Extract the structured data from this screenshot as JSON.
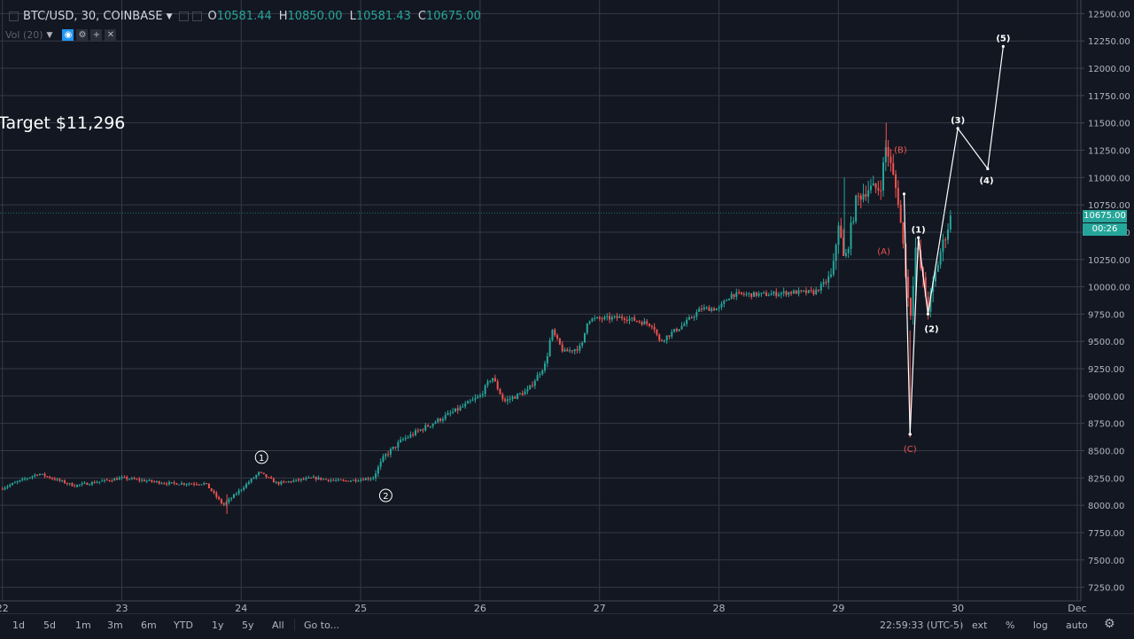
{
  "legend": {
    "symbol": "BTC/USD, 30, COINBASE",
    "open_label": "O",
    "open": "10581.44",
    "high_label": "H",
    "high": "10850.00",
    "low_label": "L",
    "low": "10581.43",
    "close_label": "C",
    "close": "10675.00",
    "dropdown_icon": "caret-down-icon"
  },
  "volume": {
    "label": "Vol (20)",
    "icons": [
      "eye-icon",
      "gear-icon",
      "plus-icon",
      "close-icon"
    ]
  },
  "annotation": {
    "target": "Target $11,296"
  },
  "price_badge": {
    "value": "10675.00",
    "countdown": "00:26",
    "color": "#26a69a"
  },
  "bottom_bar": {
    "timeframes": [
      "1d",
      "5d",
      "1m",
      "3m",
      "6m",
      "YTD",
      "1y",
      "5y",
      "All"
    ],
    "goto": "Go to...",
    "time": "22:59:33 (UTC-5)",
    "ext": "ext",
    "percent": "%",
    "log": "log",
    "auto": "auto",
    "settings_icon": "gear-icon"
  },
  "chart_data": {
    "type": "candlestick",
    "title": "BTC/USD, 30, COINBASE",
    "ylim": [
      7125,
      12625
    ],
    "y_ticks": [
      7250,
      7500,
      7750,
      8000,
      8250,
      8500,
      8750,
      9000,
      9250,
      9500,
      9750,
      10000,
      10250,
      10500,
      10750,
      11000,
      11250,
      11500,
      11750,
      12000,
      12250,
      12500
    ],
    "y_tick_labels": [
      "7250.00",
      "7500.00",
      "7750.00",
      "8000.00",
      "8250.00",
      "8500.00",
      "8750.00",
      "9000.00",
      "9250.00",
      "9500.00",
      "9750.00",
      "10000.00",
      "10250.00",
      "10500.00",
      "10750.00",
      "11000.00",
      "11250.00",
      "11500.00",
      "11750.00",
      "12000.00",
      "12250.00",
      "12500.00"
    ],
    "x_tick_labels": [
      "22",
      "23",
      "24",
      "25",
      "26",
      "27",
      "28",
      "29",
      "30",
      "Dec"
    ],
    "x_range_days": [
      21.98,
      31.03
    ],
    "x_tick_positions_days": [
      22,
      23,
      24,
      25,
      26,
      27,
      28,
      29,
      30,
      31
    ],
    "grid": true,
    "colors": {
      "up": "#26a69a",
      "down": "#ef5350",
      "background": "#131722",
      "grid": "#363a45",
      "wave": "#ffffff",
      "correction": "#ef5350"
    },
    "price_path": [
      [
        21.98,
        8150
      ],
      [
        22.3,
        8290
      ],
      [
        22.6,
        8180
      ],
      [
        23.0,
        8250
      ],
      [
        23.4,
        8200
      ],
      [
        23.7,
        8200
      ],
      [
        23.85,
        8000
      ],
      [
        24.0,
        8150
      ],
      [
        24.15,
        8300
      ],
      [
        24.3,
        8200
      ],
      [
        24.6,
        8250
      ],
      [
        24.85,
        8220
      ],
      [
        25.1,
        8250
      ],
      [
        25.2,
        8450
      ],
      [
        25.35,
        8600
      ],
      [
        25.6,
        8750
      ],
      [
        25.85,
        8900
      ],
      [
        26.0,
        9000
      ],
      [
        26.1,
        9180
      ],
      [
        26.2,
        8950
      ],
      [
        26.4,
        9050
      ],
      [
        26.55,
        9300
      ],
      [
        26.6,
        9600
      ],
      [
        26.7,
        9400
      ],
      [
        26.85,
        9450
      ],
      [
        26.9,
        9700
      ],
      [
        27.2,
        9720
      ],
      [
        27.45,
        9650
      ],
      [
        27.5,
        9500
      ],
      [
        27.7,
        9650
      ],
      [
        27.85,
        9800
      ],
      [
        28.0,
        9800
      ],
      [
        28.1,
        9930
      ],
      [
        28.4,
        9930
      ],
      [
        28.6,
        9950
      ],
      [
        28.8,
        9950
      ],
      [
        28.95,
        10100
      ],
      [
        29.0,
        10600
      ],
      [
        29.05,
        10200
      ],
      [
        29.15,
        10800
      ],
      [
        29.25,
        10900
      ],
      [
        29.35,
        10900
      ],
      [
        29.4,
        11300
      ],
      [
        29.45,
        11050
      ],
      [
        29.5,
        10800
      ],
      [
        29.55,
        10300
      ],
      [
        29.6,
        9700
      ],
      [
        29.65,
        10400
      ],
      [
        29.7,
        10100
      ],
      [
        29.75,
        9800
      ],
      [
        29.85,
        10300
      ],
      [
        29.95,
        10675
      ]
    ],
    "wave_lines": [
      {
        "name": "elliott-impulse",
        "points": [
          [
            29.6,
            8650
          ],
          [
            29.67,
            10450
          ],
          [
            29.75,
            9750
          ],
          [
            30.0,
            11450
          ],
          [
            30.25,
            11080
          ],
          [
            30.38,
            12200
          ]
        ]
      },
      {
        "name": "abc-correction",
        "points": [
          [
            29.55,
            10850
          ],
          [
            29.6,
            8650
          ]
        ]
      }
    ],
    "annotations": [
      {
        "text": "(5)",
        "x": 30.38,
        "y": 12280,
        "color": "#ffffff"
      },
      {
        "text": "(3)",
        "x": 30.0,
        "y": 11530,
        "color": "#ffffff"
      },
      {
        "text": "(4)",
        "x": 30.24,
        "y": 10980,
        "color": "#ffffff"
      },
      {
        "text": "(1)",
        "x": 29.67,
        "y": 10530,
        "color": "#ffffff"
      },
      {
        "text": "(2)",
        "x": 29.78,
        "y": 9620,
        "color": "#ffffff"
      },
      {
        "text": "(B)",
        "x": 29.52,
        "y": 11260,
        "color": "#ef5350"
      },
      {
        "text": "(A)",
        "x": 29.38,
        "y": 10330,
        "color": "#ef5350"
      },
      {
        "text": "(C)",
        "x": 29.6,
        "y": 8520,
        "color": "#ef5350"
      },
      {
        "text": "1",
        "x": 24.17,
        "y": 8440,
        "color": "#ffffff",
        "circled": true
      },
      {
        "text": "2",
        "x": 25.21,
        "y": 8090,
        "color": "#ffffff",
        "circled": true
      }
    ]
  }
}
